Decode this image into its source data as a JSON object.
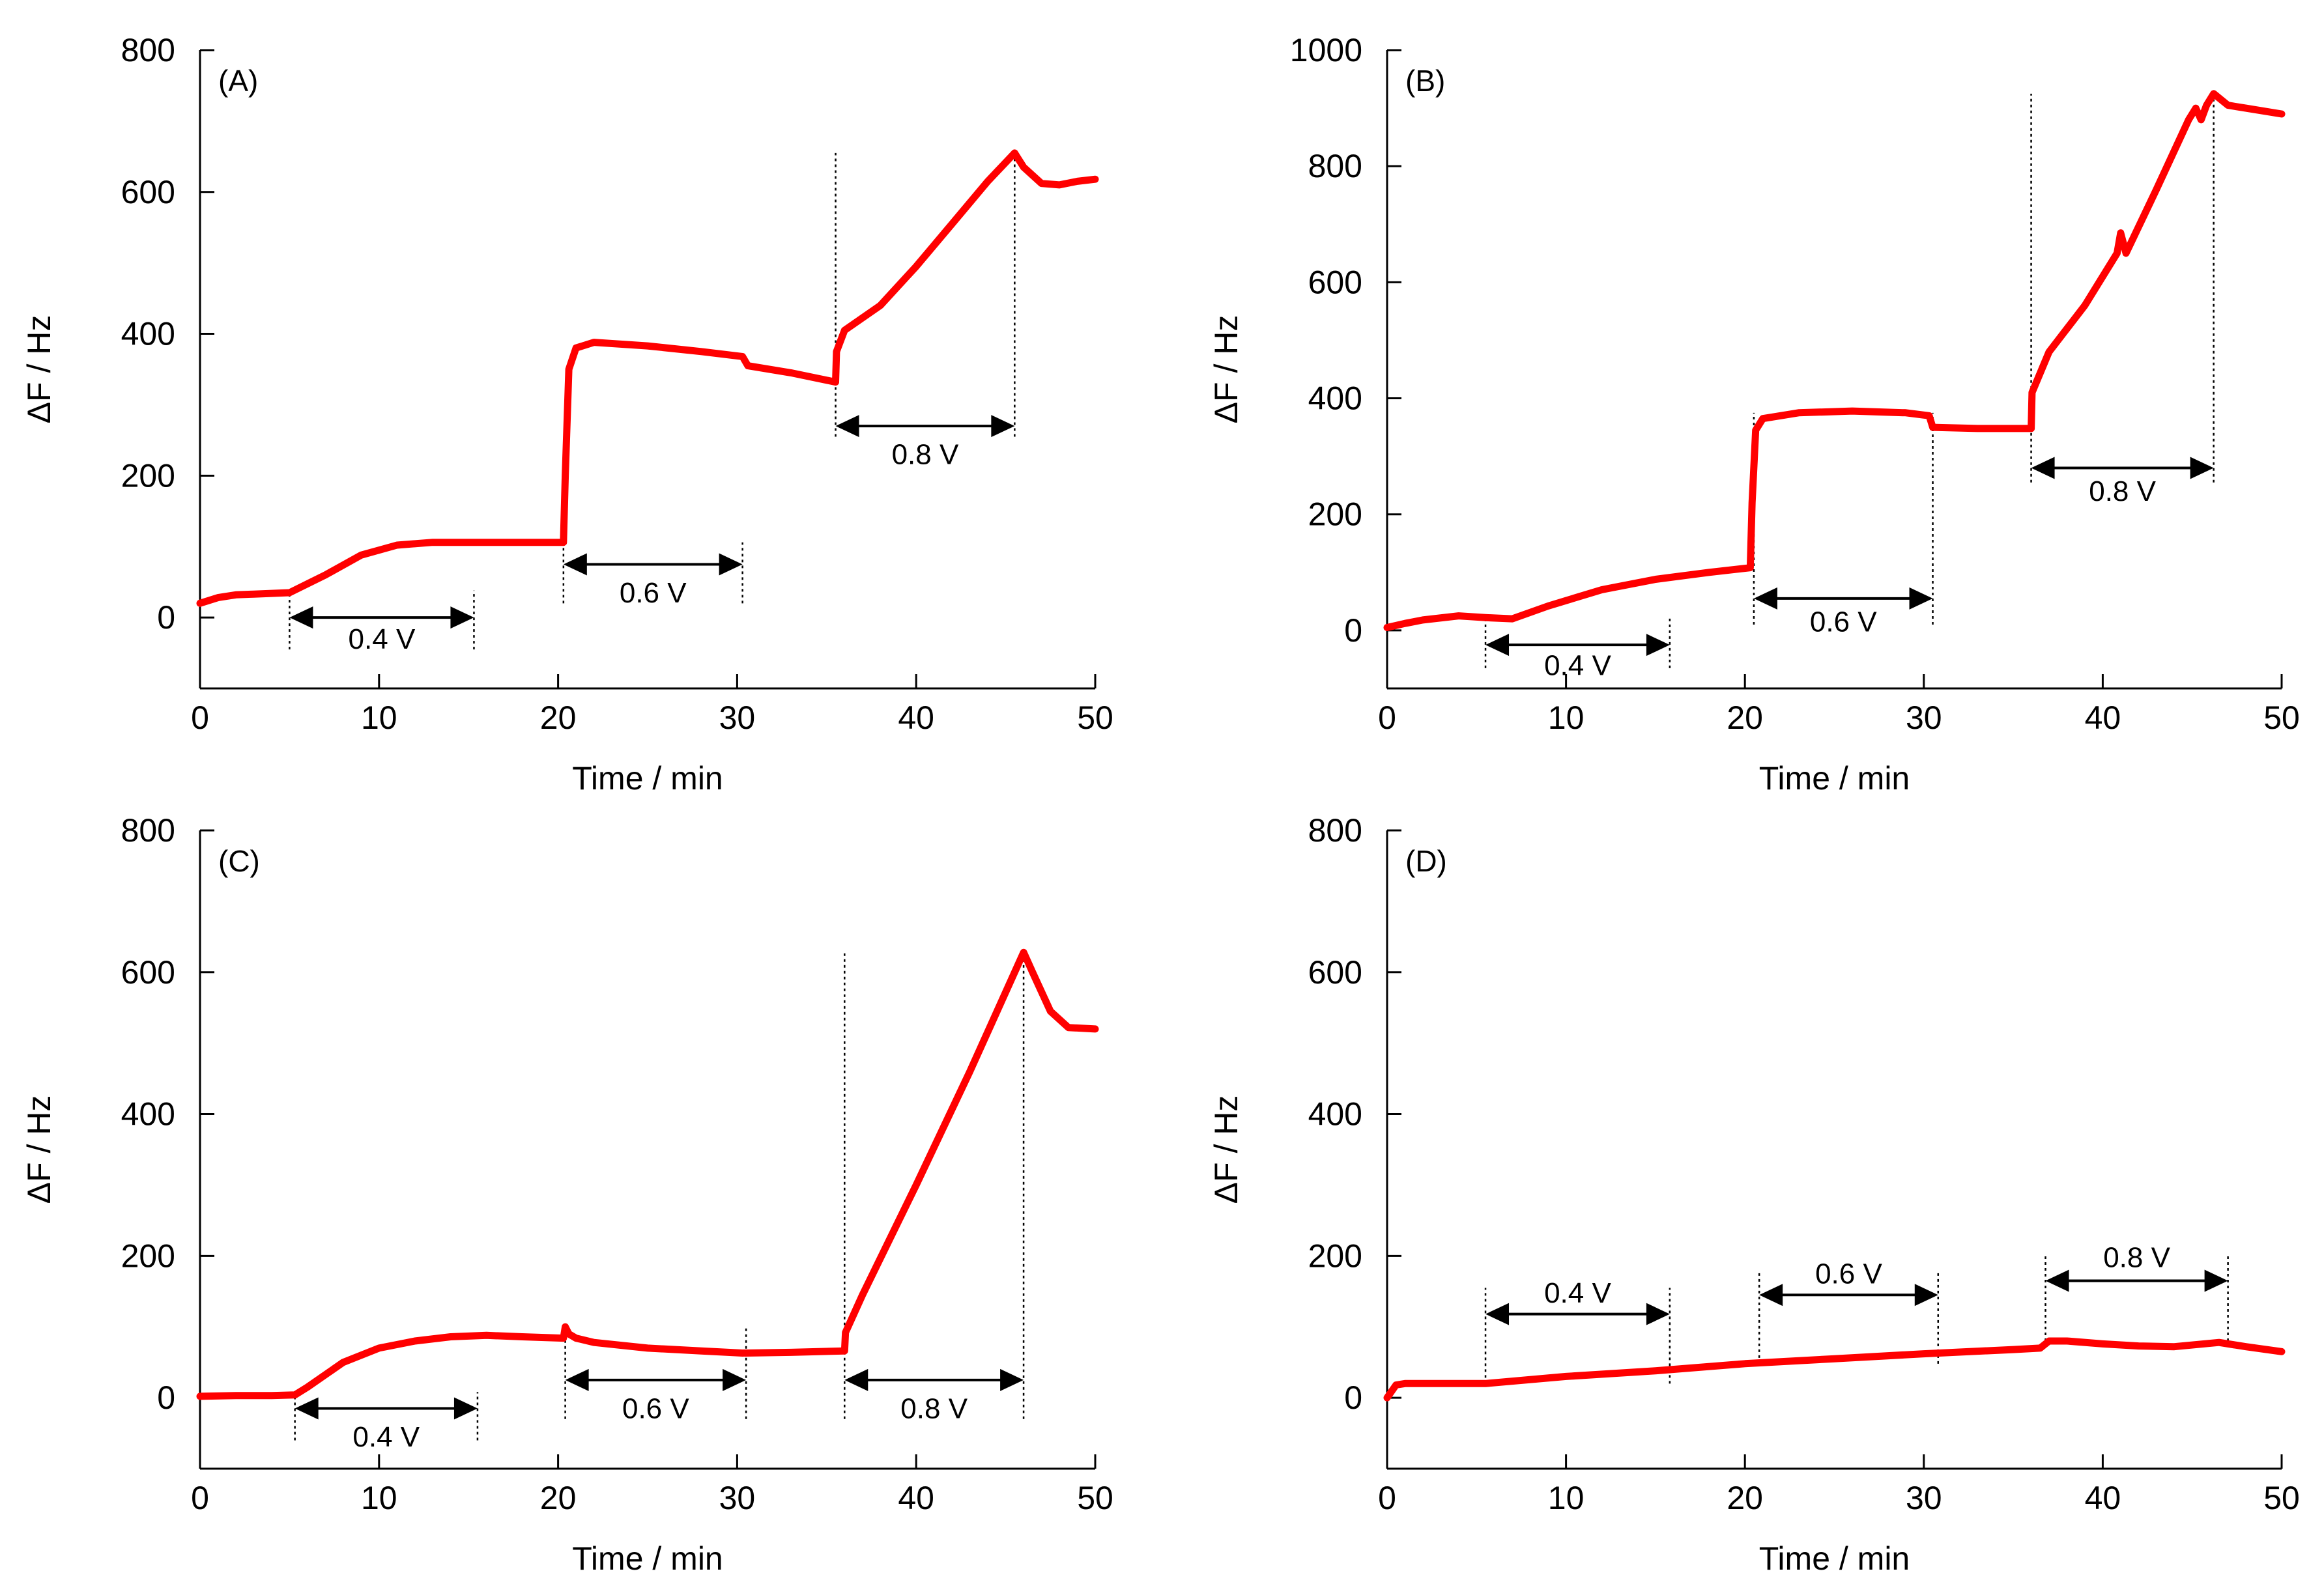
{
  "colors": {
    "series": "#ff0000",
    "axes": "#000000",
    "background": "#ffffff"
  },
  "chart_data": [
    {
      "panel": "(A)",
      "type": "line",
      "xlabel": "Time / min",
      "ylabel": "ΔF / Hz",
      "xlim": [
        0,
        50
      ],
      "ylim": [
        -100,
        800
      ],
      "xticks": [
        0,
        10,
        20,
        30,
        40,
        50
      ],
      "yticks": [
        0,
        200,
        400,
        600,
        800
      ],
      "grid": false,
      "series": [
        {
          "name": "ΔF",
          "color": "#ff0000",
          "x": [
            0,
            1,
            2,
            3,
            5,
            7,
            9,
            11,
            13,
            15,
            17,
            19,
            20.3,
            20.4,
            20.6,
            21,
            22,
            25,
            28,
            30.3,
            30.6,
            33,
            35.5,
            35.55,
            36,
            38,
            40,
            42,
            44,
            45.5,
            46,
            47,
            48,
            49,
            50
          ],
          "y": [
            20,
            28,
            32,
            33,
            35,
            60,
            88,
            102,
            106,
            106,
            106,
            106,
            106,
            200,
            350,
            380,
            388,
            383,
            375,
            368,
            355,
            345,
            332,
            375,
            405,
            440,
            495,
            555,
            615,
            655,
            635,
            612,
            610,
            615,
            618
          ]
        }
      ],
      "intervals": [
        {
          "label": "0.4 V",
          "start": 5,
          "end": 15.3,
          "arrow_y": 0,
          "label_y": -30,
          "bottom_y": -45,
          "top_y": 38
        },
        {
          "label": "0.6 V",
          "start": 20.3,
          "end": 30.3,
          "arrow_y": 75,
          "label_y": 35,
          "bottom_y": 20,
          "top_y": 106
        },
        {
          "label": "0.8 V",
          "start": 35.5,
          "end": 45.5,
          "arrow_y": 270,
          "label_y": 230,
          "bottom_y": 255,
          "top_y": 655
        }
      ]
    },
    {
      "panel": "(B)",
      "type": "line",
      "xlabel": "Time / min",
      "ylabel": "ΔF / Hz",
      "xlim": [
        0,
        50
      ],
      "ylim": [
        -100,
        1000
      ],
      "xticks": [
        0,
        10,
        20,
        30,
        40,
        50
      ],
      "yticks": [
        0,
        200,
        400,
        600,
        800,
        1000
      ],
      "grid": false,
      "series": [
        {
          "name": "ΔF",
          "color": "#ff0000",
          "x": [
            0,
            1,
            2,
            4,
            5.5,
            7,
            9,
            12,
            15,
            18,
            20.3,
            20.4,
            20.6,
            21,
            23,
            26,
            29,
            30.3,
            30.5,
            33,
            36,
            36.05,
            37,
            39,
            40.8,
            41,
            41.3,
            43,
            44.8,
            45.2,
            45.5,
            45.8,
            46.2,
            47,
            48,
            50
          ],
          "y": [
            5,
            12,
            18,
            25,
            22,
            20,
            42,
            70,
            88,
            100,
            108,
            220,
            345,
            365,
            375,
            378,
            375,
            370,
            350,
            348,
            348,
            410,
            480,
            560,
            650,
            685,
            650,
            760,
            880,
            900,
            880,
            905,
            925,
            905,
            900,
            890
          ]
        }
      ],
      "intervals": [
        {
          "label": "0.4 V",
          "start": 5.5,
          "end": 15.8,
          "arrow_y": -25,
          "label_y": -60,
          "bottom_y": -65,
          "top_y": 25
        },
        {
          "label": "0.6 V",
          "start": 20.5,
          "end": 30.5,
          "arrow_y": 55,
          "label_y": 15,
          "bottom_y": 10,
          "top_y": 375
        },
        {
          "label": "0.8 V",
          "start": 36,
          "end": 46.2,
          "arrow_y": 280,
          "label_y": 240,
          "bottom_y": 255,
          "top_y": 925
        }
      ]
    },
    {
      "panel": "(C)",
      "type": "line",
      "xlabel": "Time / min",
      "ylabel": "ΔF / Hz",
      "xlim": [
        0,
        50
      ],
      "ylim": [
        -100,
        800
      ],
      "xticks": [
        0,
        10,
        20,
        30,
        40,
        50
      ],
      "yticks": [
        0,
        200,
        400,
        600,
        800
      ],
      "grid": false,
      "series": [
        {
          "name": "ΔF",
          "color": "#ff0000",
          "x": [
            0,
            2,
            4,
            5.3,
            6,
            8,
            10,
            12,
            14,
            16,
            18,
            20.3,
            20.4,
            20.6,
            21,
            22,
            25,
            28,
            30.3,
            33,
            36,
            36.05,
            37,
            40,
            43,
            46,
            46.5,
            47.5,
            48.5,
            50
          ],
          "y": [
            2,
            3,
            3,
            4,
            15,
            50,
            70,
            80,
            86,
            88,
            86,
            84,
            100,
            90,
            84,
            78,
            70,
            66,
            63,
            64,
            66,
            92,
            145,
            300,
            460,
            628,
            600,
            545,
            522,
            520
          ]
        }
      ],
      "intervals": [
        {
          "label": "0.4 V",
          "start": 5.3,
          "end": 15.5,
          "arrow_y": -15,
          "label_y": -55,
          "bottom_y": -60,
          "top_y": 8
        },
        {
          "label": "0.6 V",
          "start": 20.4,
          "end": 30.5,
          "arrow_y": 25,
          "label_y": -15,
          "bottom_y": -30,
          "top_y": 100
        },
        {
          "label": "0.8 V",
          "start": 36,
          "end": 46,
          "arrow_y": 25,
          "label_y": -15,
          "bottom_y": -30,
          "top_y": 628
        }
      ]
    },
    {
      "panel": "(D)",
      "type": "line",
      "xlabel": "Time / min",
      "ylabel": "ΔF / Hz",
      "xlim": [
        0,
        50
      ],
      "ylim": [
        -100,
        800
      ],
      "xticks": [
        0,
        10,
        20,
        30,
        40,
        50
      ],
      "yticks": [
        0,
        200,
        400,
        600,
        800
      ],
      "grid": false,
      "series": [
        {
          "name": "ΔF",
          "color": "#ff0000",
          "x": [
            0,
            0.5,
            1,
            3,
            5.5,
            10,
            15,
            20,
            25,
            30,
            35,
            36.5,
            37,
            38,
            40,
            42,
            44,
            46.5,
            48,
            50
          ],
          "y": [
            0,
            18,
            20,
            20,
            20,
            30,
            38,
            48,
            55,
            62,
            68,
            70,
            80,
            80,
            76,
            73,
            72,
            78,
            72,
            65
          ]
        }
      ],
      "intervals": [
        {
          "label": "0.4 V",
          "start": 5.5,
          "end": 15.8,
          "arrow_y": 118,
          "label_y": 148,
          "bottom_y": 20,
          "top_y": 155
        },
        {
          "label": "0.6 V",
          "start": 20.8,
          "end": 30.8,
          "arrow_y": 145,
          "label_y": 175,
          "bottom_y": 48,
          "top_y": 180
        },
        {
          "label": "0.8 V",
          "start": 36.8,
          "end": 47,
          "arrow_y": 165,
          "label_y": 198,
          "bottom_y": 80,
          "top_y": 200
        }
      ]
    }
  ]
}
